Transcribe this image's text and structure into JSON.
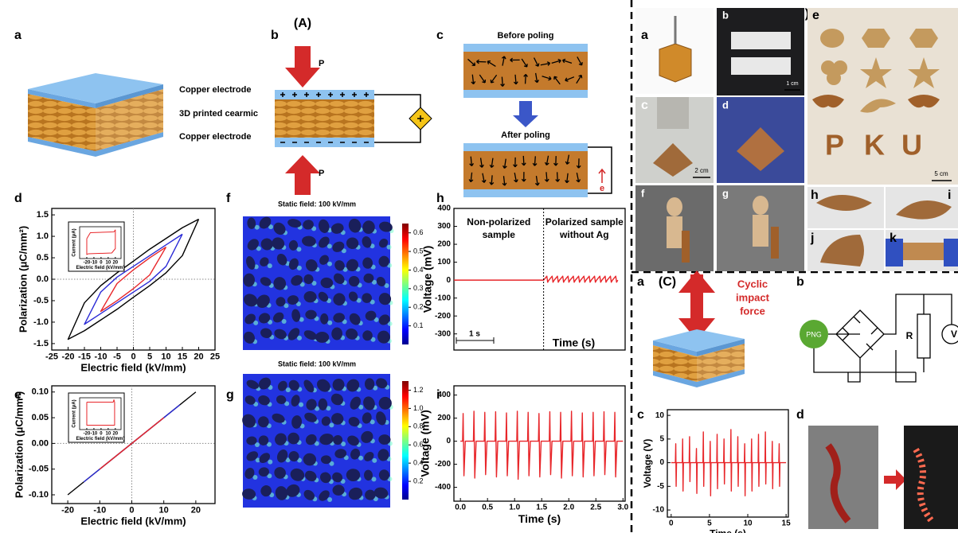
{
  "figure": {
    "section_labels": [
      "(A)",
      "(B)",
      "(C)"
    ],
    "A": {
      "panel_labels": [
        "a",
        "b",
        "c",
        "d",
        "e",
        "f",
        "g",
        "h",
        "i"
      ],
      "layer_labels": [
        "Copper electrode",
        "3D printed cearmic",
        "Copper electrode"
      ],
      "force_labels": [
        "P",
        "P"
      ],
      "poling_titles": [
        "Before poling",
        "After poling"
      ],
      "electron": "e"
    },
    "B": {
      "panel_labels": [
        "a",
        "b",
        "c",
        "d",
        "e",
        "f",
        "g",
        "h",
        "i",
        "j",
        "k"
      ],
      "scale_bars": [
        "1 cm",
        "2 cm",
        "5 cm"
      ],
      "letters": [
        "P",
        "K",
        "U"
      ]
    },
    "C": {
      "panel_labels": [
        "a",
        "b",
        "c",
        "d"
      ],
      "force_label": [
        "Cyclic",
        "impact",
        "force"
      ],
      "circuit_labels": [
        "PNG",
        "R",
        "V"
      ]
    }
  },
  "chart_data": [
    {
      "type": "line",
      "x_label": "Electric field (kV/mm)",
      "y_label": "Polarization (μC/mm²)",
      "xlim": [
        -25,
        25
      ],
      "ylim": [
        -1.65,
        1.65
      ],
      "zero_lines": true,
      "xticks": [
        -25,
        -20,
        -15,
        -10,
        -5,
        0,
        5,
        10,
        15,
        20,
        25
      ],
      "yticks": [
        -1.5,
        {
          "value": -1,
          "label": "-1.0"
        },
        -0.5,
        {
          "value": 0,
          "label": "0.0"
        },
        0.5,
        {
          "value": 1,
          "label": "1.0"
        },
        1.5
      ],
      "series": [
        {
          "color": "#000000",
          "x": [
            20,
            15,
            10,
            5,
            0,
            -5,
            -10,
            -15,
            -20,
            -15,
            -10,
            -5,
            0,
            5,
            10,
            15,
            20
          ],
          "values": [
            1.4,
            1.2,
            0.95,
            0.7,
            0.42,
            0.15,
            -0.15,
            -0.55,
            -1.4,
            -1.2,
            -0.95,
            -0.7,
            -0.42,
            -0.15,
            0.15,
            0.55,
            1.4
          ]
        },
        {
          "color": "#2b2bd6",
          "x": [
            15,
            10,
            5,
            0,
            -5,
            -10,
            -15,
            -10,
            -5,
            0,
            5,
            10,
            15
          ],
          "values": [
            1.05,
            0.8,
            0.55,
            0.3,
            0.05,
            -0.3,
            -1.05,
            -0.8,
            -0.55,
            -0.3,
            -0.05,
            0.3,
            1.05
          ]
        },
        {
          "color": "#e8262a",
          "x": [
            10,
            5,
            0,
            -5,
            -10,
            -5,
            0,
            5,
            10
          ],
          "values": [
            0.75,
            0.5,
            0.22,
            -0.1,
            -0.75,
            -0.5,
            -0.22,
            0.1,
            0.75
          ]
        }
      ]
    },
    {
      "type": "line",
      "x_label": "Electric field (kV/mm)",
      "y_label": "Current (μA)",
      "xlim": [
        -30,
        28
      ],
      "ylim": [
        -4,
        4
      ],
      "xticks": [
        -20,
        -10,
        0,
        10,
        20
      ],
      "series": [
        {
          "color": "#e8262a",
          "x": [
            -20,
            -15,
            18,
            20,
            20,
            15,
            -18,
            -20,
            -20
          ],
          "values": [
            1,
            2.5,
            2.7,
            3.2,
            -1.5,
            -2.6,
            -2.8,
            -3,
            1
          ]
        }
      ]
    },
    {
      "type": "line",
      "x_label": "Electric field (kV/mm)",
      "y_label": "Polarization (μC/mm²)",
      "xlim": [
        -25,
        26
      ],
      "ylim": [
        -0.117,
        0.112
      ],
      "zero_lines": true,
      "xticks": [
        -20,
        -10,
        0,
        10,
        20
      ],
      "yticks": [
        {
          "value": -0.1,
          "label": "-0.10"
        },
        {
          "value": -0.05,
          "label": "-0.05"
        },
        {
          "value": 0,
          "label": "0.00"
        },
        {
          "value": 0.05,
          "label": "0.05"
        },
        {
          "value": 0.1,
          "label": "0.10"
        }
      ],
      "series": [
        {
          "color": "#000000",
          "x": [
            -20,
            20
          ],
          "values": [
            -0.1,
            0.1
          ]
        },
        {
          "color": "#2b2bd6",
          "x": [
            -15,
            15
          ],
          "values": [
            -0.075,
            0.075
          ]
        },
        {
          "color": "#e8262a",
          "x": [
            -10,
            10
          ],
          "values": [
            -0.05,
            0.05
          ]
        }
      ]
    },
    {
      "type": "line",
      "x_label": "Electric field (kV/mm)",
      "y_label": "Current (μA)",
      "xlim": [
        -30,
        28
      ],
      "ylim": [
        -4,
        4
      ],
      "xticks": [
        -20,
        -10,
        0,
        10,
        20
      ],
      "series": [
        {
          "color": "#e8262a",
          "x": [
            -20,
            17,
            18,
            19,
            19,
            -20,
            -20
          ],
          "values": [
            2.9,
            2.9,
            3.5,
            2.9,
            -2.9,
            -2.9,
            2.9
          ]
        }
      ]
    },
    {
      "type": "colorbar",
      "title": "Static field: 100 kV/mm",
      "ylim": [
        0,
        0.65
      ],
      "yticks": [
        0.1,
        0.2,
        0.3,
        0.4,
        0.5,
        0.6
      ]
    },
    {
      "type": "colorbar",
      "title": "Static field: 100 kV/mm",
      "ylim": [
        0,
        1.3
      ],
      "yticks": [
        0.2,
        0.4,
        0.6,
        0.8,
        {
          "value": 1,
          "label": "1.0"
        },
        1.2
      ]
    },
    {
      "type": "line",
      "x_label": "Time (s)",
      "y_label": "Voltage (mV)",
      "xlim": [
        0,
        4.2
      ],
      "ylim": [
        -390,
        400
      ],
      "yticks": [
        -300,
        -200,
        -100,
        0,
        100,
        200,
        300,
        400
      ],
      "annotations": [
        [
          "Non-polarized",
          "sample"
        ],
        [
          "Polarized sample",
          "without Ag"
        ]
      ],
      "scale_bar": "1 s",
      "series": [
        {
          "color": "#e8262a",
          "x": [
            0,
            2.2,
            2.28,
            2.3,
            2.33,
            2.41,
            2.43,
            2.46,
            2.54,
            2.56,
            2.59,
            2.67,
            2.69,
            2.72,
            2.8,
            2.82,
            2.85,
            2.93,
            2.95,
            2.98,
            3.06,
            3.08,
            3.11,
            3.19,
            3.21,
            3.24,
            3.32,
            3.34,
            3.37,
            3.45,
            3.47,
            3.5,
            3.58,
            3.6,
            3.63,
            3.71,
            3.73,
            3.76,
            3.84,
            3.86,
            3.89,
            3.97,
            3.99,
            4.02
          ],
          "values": [
            0,
            0,
            22,
            -12,
            0,
            22,
            -12,
            0,
            22,
            -12,
            0,
            22,
            -12,
            0,
            22,
            -12,
            0,
            22,
            -12,
            0,
            22,
            -12,
            0,
            22,
            -12,
            0,
            22,
            -12,
            0,
            22,
            -12,
            0,
            22,
            -12,
            0,
            22,
            -12,
            0,
            22,
            -12,
            0,
            22,
            -12,
            0
          ]
        }
      ]
    },
    {
      "type": "line",
      "x_label": "Time (s)",
      "y_label": "Voltage (mV)",
      "xlim": [
        -0.12,
        3.04
      ],
      "ylim": [
        -520,
        480
      ],
      "xticks": [
        {
          "value": 0,
          "label": "0.0"
        },
        0.5,
        {
          "value": 1,
          "label": "1.0"
        },
        1.5,
        {
          "value": 2,
          "label": "2.0"
        },
        2.5,
        {
          "value": 3,
          "label": "3.0"
        }
      ],
      "yticks": [
        -400,
        -200,
        0,
        200,
        400
      ],
      "series": [
        {
          "color": "#e8262a",
          "x": [
            0,
            0.04,
            0.05,
            0.065,
            0.09,
            0.24,
            0.25,
            0.265,
            0.29,
            0.44,
            0.45,
            0.465,
            0.49,
            0.64,
            0.65,
            0.665,
            0.69,
            0.84,
            0.85,
            0.865,
            0.89,
            1.04,
            1.05,
            1.065,
            1.09,
            1.24,
            1.25,
            1.265,
            1.29,
            1.44,
            1.45,
            1.465,
            1.49,
            1.64,
            1.65,
            1.665,
            1.69,
            1.84,
            1.85,
            1.865,
            1.89,
            2.04,
            2.05,
            2.065,
            2.09,
            2.24,
            2.25,
            2.265,
            2.29,
            2.44,
            2.45,
            2.465,
            2.49,
            2.64,
            2.65,
            2.665,
            2.69,
            2.84,
            2.85,
            2.865,
            2.89,
            3
          ],
          "values": [
            0,
            0,
            240,
            -300,
            0,
            0,
            260,
            -320,
            0,
            0,
            250,
            -290,
            0,
            0,
            255,
            -310,
            0,
            0,
            245,
            -300,
            0,
            0,
            260,
            -330,
            0,
            0,
            250,
            -300,
            0,
            0,
            240,
            -310,
            0,
            0,
            255,
            -290,
            0,
            0,
            250,
            -320,
            0,
            0,
            260,
            -300,
            0,
            0,
            245,
            -310,
            0,
            0,
            250,
            -300,
            0,
            0,
            255,
            -290,
            0,
            0,
            250,
            -310,
            0,
            0
          ]
        }
      ]
    },
    {
      "type": "line",
      "x_label": "Time (s)",
      "y_label": "Voltage (V)",
      "xlim": [
        -0.5,
        15.3
      ],
      "ylim": [
        -11.5,
        11.2
      ],
      "xticks": [
        0,
        5,
        10,
        15
      ],
      "yticks": [
        -10,
        -5,
        0,
        5,
        10
      ],
      "series": [
        {
          "color": "#e8262a",
          "x": [
            0,
            0.55,
            0.6,
            0.65,
            0.7,
            1.45,
            1.5,
            1.55,
            1.6,
            2.35,
            2.4,
            2.45,
            2.5,
            3.25,
            3.3,
            3.35,
            3.4,
            4.15,
            4.2,
            4.25,
            4.3,
            5.05,
            5.1,
            5.15,
            5.2,
            5.95,
            6,
            6.05,
            6.1,
            6.85,
            6.9,
            6.95,
            7,
            7.75,
            7.8,
            7.85,
            7.9,
            8.65,
            8.7,
            8.75,
            8.8,
            9.55,
            9.6,
            9.65,
            9.7,
            10.45,
            10.5,
            10.55,
            10.6,
            11.35,
            11.4,
            11.45,
            11.5,
            12.25,
            12.3,
            12.35,
            12.4,
            13.15,
            13.2,
            13.25,
            13.3,
            14.05,
            14.1,
            14.15,
            14.2,
            15
          ],
          "values": [
            0,
            0,
            4,
            -5,
            0,
            0,
            5,
            -6,
            0,
            0,
            5.5,
            -4,
            0,
            0,
            3,
            -6.5,
            0,
            0,
            6.5,
            -5,
            0,
            0,
            4.5,
            -7,
            0,
            0,
            6,
            -5.5,
            0,
            0,
            5,
            -4.5,
            0,
            0,
            7,
            -6,
            0,
            0,
            5.5,
            -5,
            0,
            0,
            4,
            -7,
            0,
            0,
            5,
            -6,
            0,
            0,
            6,
            -5,
            0,
            0,
            6.5,
            -4.5,
            0,
            0,
            4.5,
            -5.5,
            0,
            0,
            4,
            -5,
            0,
            0
          ]
        }
      ]
    }
  ]
}
